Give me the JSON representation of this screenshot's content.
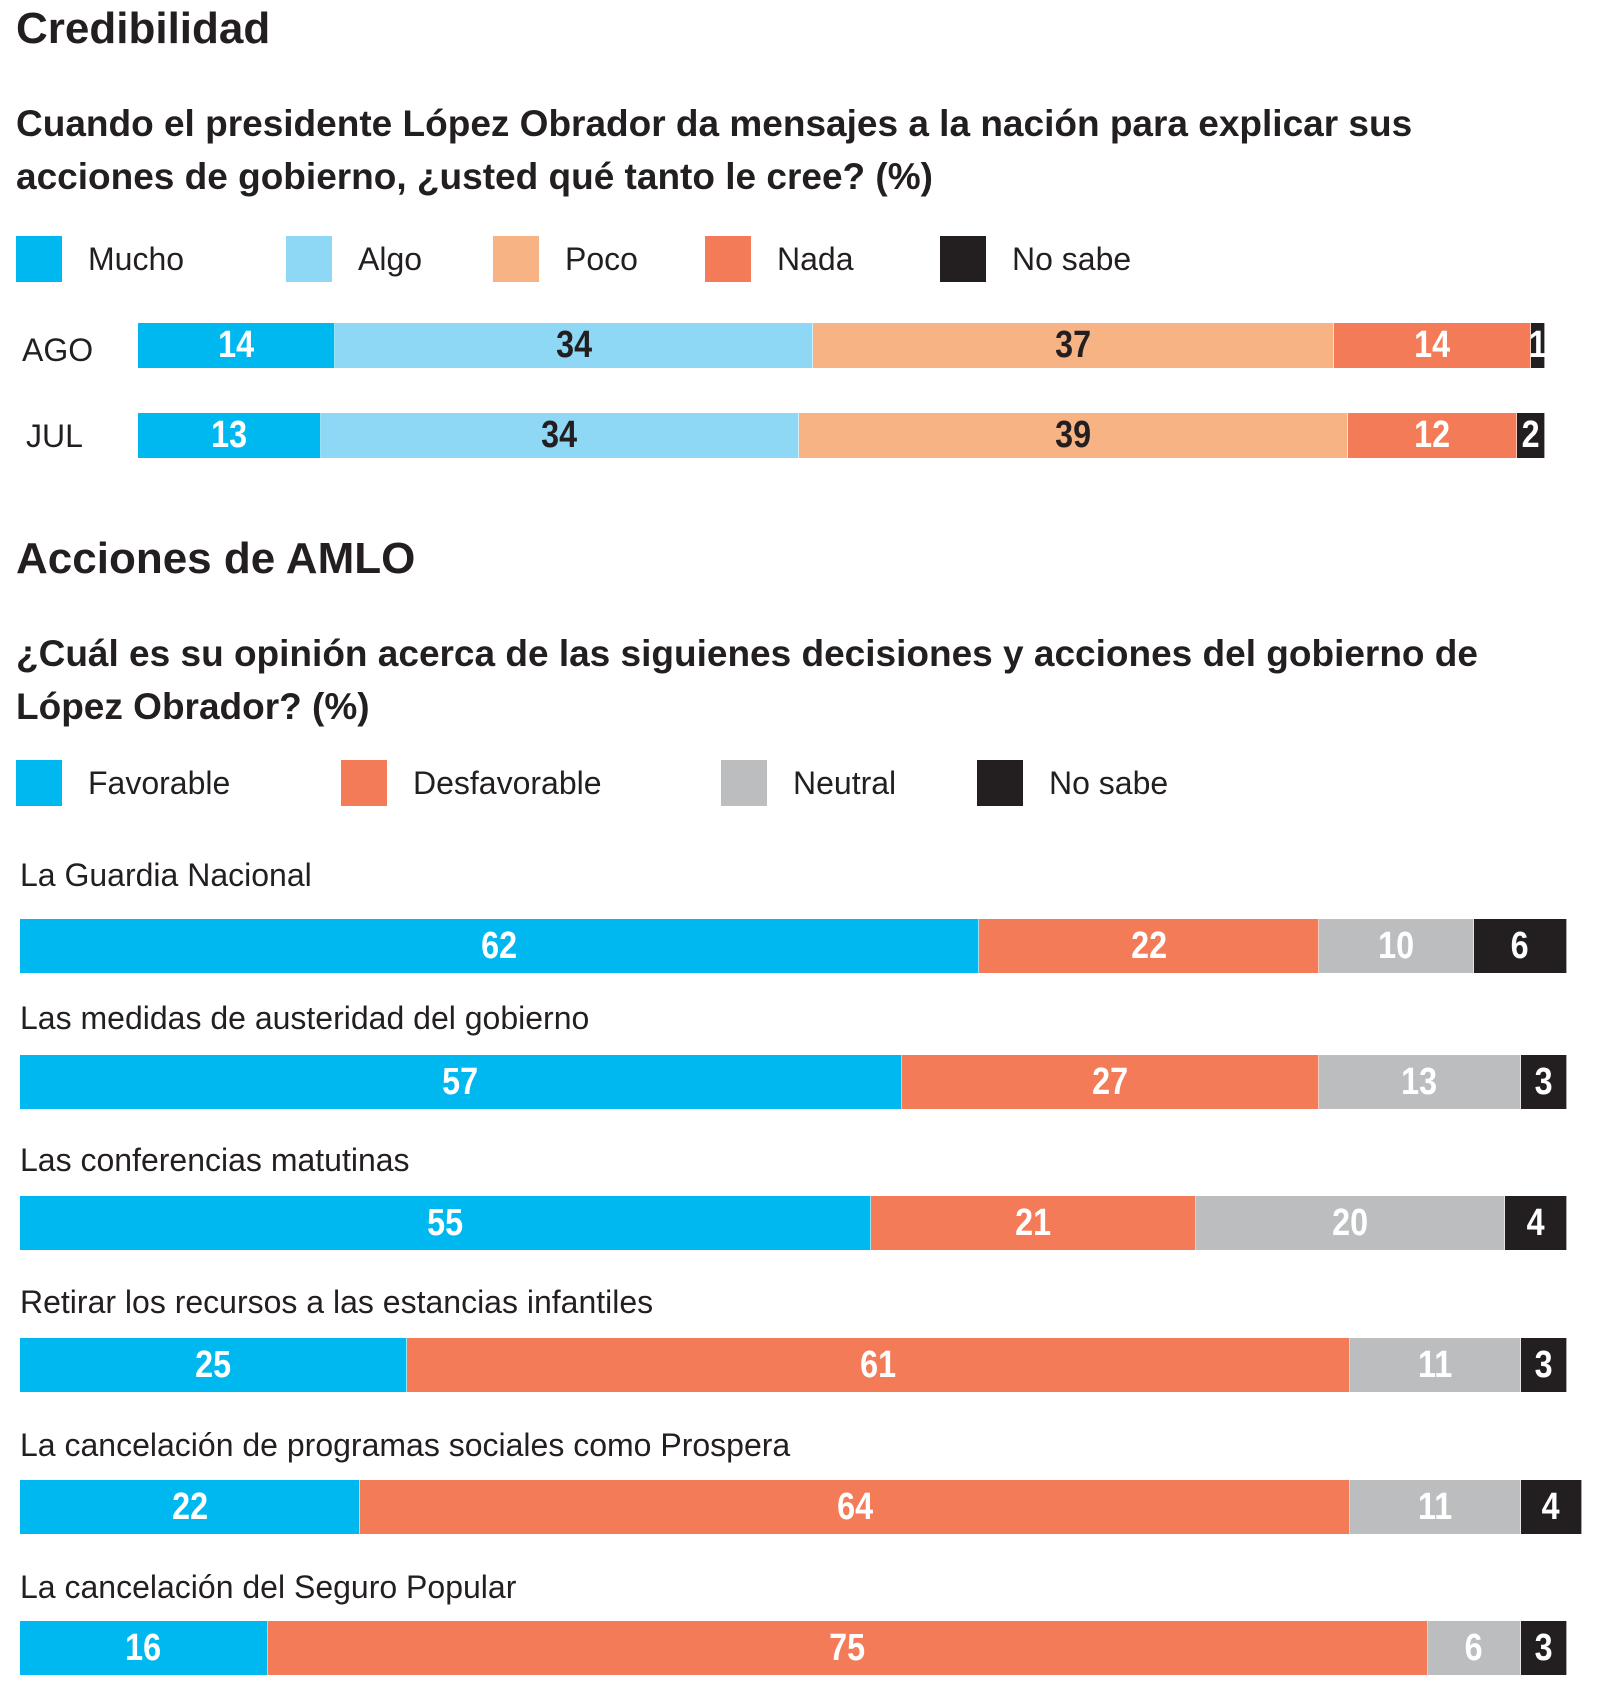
{
  "colors": {
    "Mucho": "#00b8f0",
    "Algo": "#8ed8f6",
    "Poco": "#f8b385",
    "Nada": "#f37b58",
    "No sabe": "#231f20",
    "Favorable": "#00b8f0",
    "Desfavorable": "#f37b58",
    "Neutral": "#bcbdbe"
  },
  "section1": {
    "title": "Credibilidad",
    "question": "Cuando el presidente López Obrador da mensajes a la nación para explicar sus acciones de gobierno, ¿usted qué tanto le cree? (%)"
  },
  "section2": {
    "title": "Acciones de AMLO",
    "question": "¿Cuál es su opinión acerca de las siguienes decisiones y acciones del gobierno de López Obrador? (%)"
  },
  "chart_data": [
    {
      "type": "bar",
      "stacked": true,
      "orientation": "horizontal",
      "legend": [
        "Mucho",
        "Algo",
        "Poco",
        "Nada",
        "No sabe"
      ],
      "legend_position": "top-left",
      "categories": [
        "AGO",
        "JUL"
      ],
      "series": [
        {
          "name": "Mucho",
          "values": [
            14,
            13
          ]
        },
        {
          "name": "Algo",
          "values": [
            34,
            34
          ]
        },
        {
          "name": "Poco",
          "values": [
            37,
            39
          ]
        },
        {
          "name": "Nada",
          "values": [
            14,
            12
          ]
        },
        {
          "name": "No sabe",
          "values": [
            1,
            2
          ]
        }
      ]
    },
    {
      "type": "bar",
      "stacked": true,
      "orientation": "horizontal",
      "legend": [
        "Favorable",
        "Desfavorable",
        "Neutral",
        "No sabe"
      ],
      "legend_position": "top-left",
      "categories": [
        "La Guardia Nacional",
        "Las medidas de austeridad del gobierno",
        "Las conferencias matutinas",
        "Retirar los recursos a las estancias infantiles",
        "La cancelación de programas sociales como Prospera",
        "La cancelación del Seguro Popular"
      ],
      "series": [
        {
          "name": "Favorable",
          "values": [
            62,
            57,
            55,
            25,
            22,
            16
          ]
        },
        {
          "name": "Desfavorable",
          "values": [
            22,
            27,
            21,
            61,
            64,
            75
          ]
        },
        {
          "name": "Neutral",
          "values": [
            10,
            13,
            20,
            11,
            11,
            6
          ]
        },
        {
          "name": "No sabe",
          "values": [
            6,
            3,
            4,
            3,
            4,
            3
          ]
        }
      ]
    }
  ]
}
